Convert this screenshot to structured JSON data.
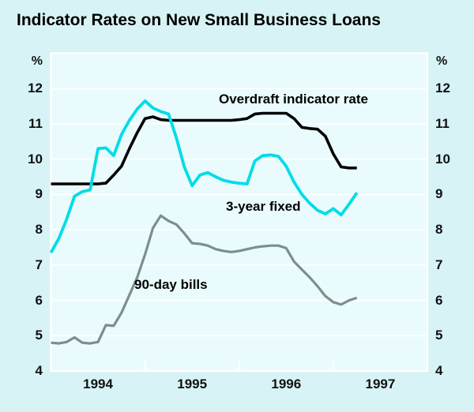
{
  "title": "Indicator Rates on New Small Business Loans",
  "chart_data": {
    "type": "line",
    "title": "Indicator Rates on New Small Business Loans",
    "unit": "%",
    "ylim": [
      4,
      13
    ],
    "yticks": [
      12,
      11,
      10,
      9,
      8,
      7,
      6,
      5,
      4
    ],
    "grid": true,
    "x_frequency": "monthly",
    "x_start": "Jan 1994",
    "x_end": "Apr 1997",
    "xlabels": [
      "1994",
      "1995",
      "1996",
      "1997"
    ],
    "legend_position": "inline-labels",
    "colors": {
      "background": "#d7f3f5",
      "plot_background": "#e9fbfc",
      "gridline": "#ffffff",
      "overdraft": "#000000",
      "three_year_fixed": "#00dce8",
      "ninety_day_bills": "#7d8e8e"
    },
    "series": [
      {
        "name": "Overdraft indicator rate",
        "color": "#000000",
        "values": [
          9.3,
          9.3,
          9.3,
          9.3,
          9.3,
          9.3,
          9.3,
          9.32,
          9.55,
          9.8,
          10.3,
          10.75,
          11.15,
          11.2,
          11.12,
          11.1,
          11.1,
          11.1,
          11.1,
          11.1,
          11.1,
          11.1,
          11.1,
          11.1,
          11.12,
          11.15,
          11.28,
          11.3,
          11.3,
          11.3,
          11.3,
          11.15,
          10.9,
          10.87,
          10.85,
          10.65,
          10.15,
          9.78,
          9.75,
          9.75
        ]
      },
      {
        "name": "3-year fixed",
        "color": "#00dce8",
        "values": [
          7.35,
          7.75,
          8.3,
          8.95,
          9.08,
          9.13,
          10.3,
          10.32,
          10.1,
          10.7,
          11.1,
          11.42,
          11.65,
          11.45,
          11.35,
          11.28,
          10.6,
          9.78,
          9.25,
          9.55,
          9.62,
          9.5,
          9.4,
          9.35,
          9.32,
          9.3,
          9.95,
          10.1,
          10.12,
          10.08,
          9.8,
          9.35,
          9.0,
          8.75,
          8.55,
          8.45,
          8.6,
          8.42,
          8.72,
          9.05
        ]
      },
      {
        "name": "90-day bills",
        "color": "#7d8e8e",
        "values": [
          4.8,
          4.78,
          4.82,
          4.95,
          4.8,
          4.78,
          4.82,
          5.3,
          5.28,
          5.65,
          6.15,
          6.65,
          7.3,
          8.05,
          8.4,
          8.25,
          8.15,
          7.9,
          7.62,
          7.6,
          7.55,
          7.45,
          7.4,
          7.37,
          7.4,
          7.45,
          7.5,
          7.53,
          7.55,
          7.55,
          7.48,
          7.1,
          6.87,
          6.65,
          6.4,
          6.12,
          5.95,
          5.88,
          6.0,
          6.07
        ]
      }
    ]
  }
}
